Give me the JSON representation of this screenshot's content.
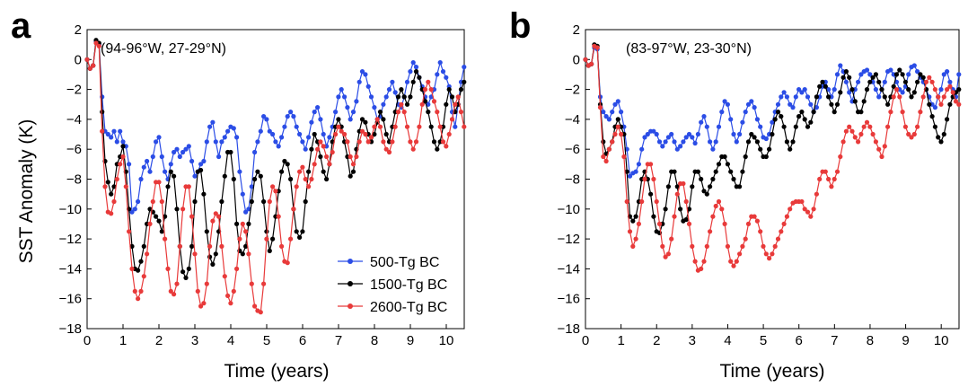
{
  "figure": {
    "ylabel": "SST  Anomaly (K)",
    "legend": {
      "position": "lower-right of panel a",
      "entries": [
        {
          "label": "500-Tg BC",
          "color": "#2b4de6"
        },
        {
          "label": "1500-Tg BC",
          "color": "#000000"
        },
        {
          "label": "2600-Tg BC",
          "color": "#e83a3a"
        }
      ]
    }
  },
  "chart_data": [
    {
      "type": "line",
      "panel": "a",
      "annotation": "(94-96°W, 27-29°N)",
      "xlabel": "Time (years)",
      "ylabel": "SST  Anomaly (K)",
      "xlim": [
        0,
        10.5
      ],
      "ylim": [
        -18,
        2
      ],
      "xticks": [
        "0",
        "1",
        "2",
        "3",
        "4",
        "5",
        "6",
        "7",
        "8",
        "9",
        "10"
      ],
      "yticks": [
        "2",
        "0",
        "−2",
        "−4",
        "−6",
        "−8",
        "−10",
        "−12",
        "−14",
        "−16",
        "−18"
      ],
      "x_step": 0.0833,
      "series": [
        {
          "name": "500-Tg BC",
          "color": "#2b4de6",
          "values": [
            0,
            -0.6,
            -0.4,
            1.2,
            1.0,
            -2.5,
            -4.8,
            -5.0,
            -5.2,
            -4.8,
            -5.5,
            -4.8,
            -5.5,
            -5.8,
            -7.0,
            -10.2,
            -10.0,
            -9.5,
            -8.0,
            -7.2,
            -6.8,
            -7.5,
            -6.5,
            -5.5,
            -5.2,
            -6.5,
            -7.5,
            -8.0,
            -7.0,
            -6.2,
            -6.0,
            -6.5,
            -6.2,
            -6.0,
            -5.8,
            -6.8,
            -7.8,
            -7.5,
            -7.0,
            -6.8,
            -5.5,
            -4.5,
            -4.2,
            -5.5,
            -6.5,
            -5.5,
            -5.2,
            -4.8,
            -4.5,
            -4.6,
            -5.2,
            -7.5,
            -9.0,
            -10.2,
            -10.0,
            -8.5,
            -6.2,
            -5.5,
            -4.8,
            -3.8,
            -4.0,
            -4.8,
            -5.0,
            -5.5,
            -5.8,
            -5.2,
            -4.5,
            -3.8,
            -3.5,
            -3.8,
            -4.5,
            -5.0,
            -5.5,
            -6.0,
            -5.2,
            -4.2,
            -3.5,
            -3.2,
            -4.0,
            -5.0,
            -5.8,
            -5.2,
            -4.5,
            -3.5,
            -2.5,
            -2.0,
            -2.5,
            -3.2,
            -4.0,
            -3.5,
            -2.8,
            -1.5,
            -0.8,
            -1.0,
            -1.8,
            -2.5,
            -3.2,
            -4.0,
            -3.8,
            -3.0,
            -2.5,
            -2.0,
            -1.5,
            -2.2,
            -3.0,
            -3.2,
            -2.5,
            -1.5,
            -0.8,
            -0.2,
            -0.5,
            -1.2,
            -1.8,
            -2.5,
            -3.0,
            -2.5,
            -2.0,
            -1.0,
            -0.2,
            -0.8,
            -1.2,
            -1.8,
            -3.5,
            -4.5,
            -3.0,
            -1.5,
            -0.5
          ]
        },
        {
          "name": "1500-Tg BC",
          "color": "#000000",
          "values": [
            0,
            -0.6,
            -0.4,
            1.3,
            1.1,
            -3.5,
            -6.8,
            -8.2,
            -9.0,
            -8.5,
            -7.0,
            -6.5,
            -5.8,
            -7.5,
            -10.0,
            -12.5,
            -14.0,
            -14.1,
            -13.5,
            -12.5,
            -11.0,
            -10.0,
            -10.2,
            -10.5,
            -10.8,
            -11.5,
            -10.5,
            -8.5,
            -7.5,
            -7.8,
            -10.0,
            -12.5,
            -14.2,
            -14.6,
            -14.0,
            -12.5,
            -9.5,
            -7.5,
            -7.4,
            -9.0,
            -11.5,
            -13.2,
            -13.7,
            -13.0,
            -11.5,
            -9.5,
            -7.8,
            -6.2,
            -6.2,
            -8.0,
            -11.0,
            -12.8,
            -13.0,
            -12.5,
            -11.0,
            -9.5,
            -8.0,
            -7.5,
            -7.8,
            -9.5,
            -11.5,
            -12.8,
            -12.0,
            -10.5,
            -8.8,
            -7.5,
            -6.8,
            -7.0,
            -8.0,
            -10.0,
            -11.5,
            -11.9,
            -11.5,
            -9.5,
            -7.5,
            -6.0,
            -5.0,
            -5.5,
            -6.5,
            -7.5,
            -8.0,
            -7.0,
            -5.5,
            -4.5,
            -4.0,
            -4.5,
            -5.5,
            -6.5,
            -7.8,
            -7.5,
            -6.0,
            -4.8,
            -4.0,
            -4.2,
            -5.0,
            -5.5,
            -5.0,
            -4.2,
            -3.5,
            -4.0,
            -5.0,
            -5.5,
            -4.5,
            -3.5,
            -2.5,
            -2.0,
            -2.5,
            -3.0,
            -2.5,
            -1.5,
            -0.8,
            -1.2,
            -2.0,
            -2.8,
            -3.5,
            -4.5,
            -5.5,
            -6.0,
            -5.5,
            -4.5,
            -3.0,
            -2.0,
            -2.5,
            -3.5,
            -3.0,
            -2.0,
            -1.5
          ]
        },
        {
          "name": "2600-Tg BC",
          "color": "#e83a3a",
          "values": [
            0,
            -0.6,
            -0.4,
            1.1,
            0.9,
            -4.8,
            -8.5,
            -10.2,
            -10.3,
            -9.5,
            -8.0,
            -7.0,
            -6.5,
            -8.5,
            -11.5,
            -14.0,
            -15.5,
            -16.0,
            -15.5,
            -14.5,
            -13.0,
            -11.0,
            -9.5,
            -8.2,
            -8.2,
            -9.5,
            -12.0,
            -14.0,
            -15.5,
            -15.7,
            -15.0,
            -12.5,
            -10.0,
            -8.5,
            -8.5,
            -10.5,
            -13.0,
            -15.5,
            -16.5,
            -16.3,
            -15.0,
            -12.5,
            -10.8,
            -10.3,
            -10.5,
            -12.5,
            -14.5,
            -15.8,
            -16.3,
            -15.5,
            -14.0,
            -12.0,
            -11.0,
            -11.5,
            -13.0,
            -15.0,
            -16.5,
            -16.8,
            -16.9,
            -15.0,
            -12.0,
            -9.5,
            -8.5,
            -8.8,
            -10.5,
            -12.5,
            -13.5,
            -13.6,
            -12.0,
            -10.0,
            -8.5,
            -7.5,
            -7.2,
            -8.0,
            -8.5,
            -8.0,
            -7.0,
            -6.0,
            -5.5,
            -5.8,
            -6.5,
            -7.0,
            -6.2,
            -5.0,
            -4.5,
            -4.8,
            -5.0,
            -5.5,
            -6.5,
            -7.0,
            -6.5,
            -5.5,
            -4.8,
            -5.0,
            -5.5,
            -5.2,
            -4.5,
            -4.0,
            -4.5,
            -5.5,
            -6.0,
            -6.2,
            -5.5,
            -4.5,
            -3.5,
            -3.0,
            -3.5,
            -4.5,
            -5.5,
            -6.0,
            -5.5,
            -4.5,
            -3.0,
            -2.0,
            -1.5,
            -2.0,
            -2.8,
            -3.5,
            -4.5,
            -5.5,
            -5.8,
            -5.0,
            -4.0,
            -3.0,
            -2.5,
            -3.5,
            -4.5
          ]
        }
      ]
    },
    {
      "type": "line",
      "panel": "b",
      "annotation": "(83-97°W, 23-30°N)",
      "xlabel": "Time (years)",
      "ylabel": "",
      "xlim": [
        0,
        10.5
      ],
      "ylim": [
        -18,
        2
      ],
      "xticks": [
        "0",
        "1",
        "2",
        "3",
        "4",
        "5",
        "6",
        "7",
        "8",
        "9",
        "10"
      ],
      "yticks": [
        "2",
        "0",
        "−2",
        "−4",
        "−6",
        "−8",
        "−10",
        "−12",
        "−14",
        "−16",
        "−18"
      ],
      "x_step": 0.0833,
      "series": [
        {
          "name": "500-Tg BC",
          "color": "#2b4de6",
          "values": [
            0,
            -0.4,
            -0.3,
            0.8,
            0.7,
            -2.5,
            -3.5,
            -3.8,
            -4.0,
            -3.5,
            -3.0,
            -2.8,
            -3.5,
            -4.5,
            -6.0,
            -7.8,
            -7.6,
            -7.5,
            -7.0,
            -6.0,
            -5.2,
            -5.0,
            -4.8,
            -4.8,
            -5.0,
            -5.5,
            -5.8,
            -5.5,
            -5.2,
            -5.0,
            -5.5,
            -6.0,
            -5.8,
            -5.5,
            -5.2,
            -5.0,
            -5.2,
            -5.6,
            -5.0,
            -4.2,
            -3.8,
            -4.5,
            -5.5,
            -6.0,
            -5.5,
            -4.5,
            -3.5,
            -2.8,
            -3.0,
            -4.0,
            -5.0,
            -5.5,
            -5.0,
            -4.2,
            -3.5,
            -3.0,
            -2.8,
            -3.2,
            -4.0,
            -4.5,
            -5.2,
            -5.3,
            -5.0,
            -4.2,
            -3.5,
            -3.0,
            -2.5,
            -2.2,
            -2.5,
            -3.0,
            -3.2,
            -2.5,
            -2.0,
            -2.2,
            -2.0,
            -2.5,
            -3.0,
            -3.5,
            -3.2,
            -2.5,
            -1.8,
            -1.5,
            -2.0,
            -2.5,
            -2.0,
            -1.0,
            -0.4,
            -0.8,
            -1.5,
            -2.2,
            -2.8,
            -2.0,
            -1.5,
            -1.0,
            -0.8,
            -0.7,
            -1.0,
            -1.5,
            -2.0,
            -2.5,
            -2.0,
            -1.5,
            -0.8,
            -0.7,
            -1.0,
            -1.5,
            -2.0,
            -2.2,
            -1.8,
            -1.0,
            -0.5,
            -0.4,
            -0.8,
            -1.2,
            -1.5,
            -2.0,
            -2.5,
            -3.0,
            -3.2,
            -2.5,
            -2.0,
            -1.0,
            -0.8,
            -1.5,
            -2.0,
            -2.5,
            -1.0
          ]
        },
        {
          "name": "1500-Tg BC",
          "color": "#000000",
          "values": [
            0,
            -0.4,
            -0.3,
            1.0,
            0.9,
            -3.0,
            -5.5,
            -6.3,
            -6.0,
            -5.5,
            -4.5,
            -4.0,
            -4.5,
            -5.0,
            -7.5,
            -10.5,
            -10.8,
            -10.5,
            -9.5,
            -8.0,
            -7.5,
            -8.0,
            -9.0,
            -10.5,
            -11.5,
            -11.6,
            -11.0,
            -10.0,
            -8.5,
            -7.5,
            -7.5,
            -8.5,
            -10.0,
            -10.8,
            -10.7,
            -10.0,
            -8.5,
            -7.5,
            -7.5,
            -8.0,
            -8.8,
            -9.0,
            -8.5,
            -8.0,
            -7.5,
            -7.0,
            -6.5,
            -6.5,
            -7.0,
            -7.5,
            -8.0,
            -8.5,
            -8.5,
            -7.5,
            -6.5,
            -5.5,
            -5.0,
            -5.2,
            -5.5,
            -6.0,
            -6.5,
            -6.5,
            -6.0,
            -5.0,
            -4.0,
            -3.5,
            -3.8,
            -4.5,
            -5.5,
            -6.0,
            -5.5,
            -4.5,
            -3.8,
            -3.5,
            -4.0,
            -4.5,
            -4.2,
            -3.5,
            -2.5,
            -1.8,
            -1.5,
            -1.8,
            -2.5,
            -3.0,
            -3.5,
            -3.0,
            -2.2,
            -1.2,
            -0.8,
            -1.2,
            -2.0,
            -2.8,
            -3.5,
            -3.5,
            -2.8,
            -2.0,
            -1.5,
            -1.2,
            -1.0,
            -1.5,
            -2.0,
            -2.5,
            -3.0,
            -2.5,
            -1.8,
            -1.0,
            -0.7,
            -1.0,
            -1.5,
            -2.0,
            -2.5,
            -2.2,
            -1.5,
            -1.0,
            -1.2,
            -2.0,
            -3.0,
            -3.8,
            -4.5,
            -5.2,
            -5.5,
            -5.0,
            -4.0,
            -3.0,
            -2.5,
            -2.2,
            -2.0
          ]
        },
        {
          "name": "2600-Tg BC",
          "color": "#e83a3a",
          "values": [
            0,
            -0.4,
            -0.3,
            0.9,
            0.8,
            -3.2,
            -6.5,
            -6.8,
            -6.0,
            -5.5,
            -5.0,
            -4.5,
            -5.0,
            -6.5,
            -9.5,
            -11.5,
            -12.5,
            -12.0,
            -11.0,
            -9.5,
            -8.0,
            -7.0,
            -7.0,
            -8.0,
            -9.5,
            -11.0,
            -12.5,
            -13.2,
            -13.0,
            -12.0,
            -10.5,
            -9.0,
            -8.3,
            -8.3,
            -9.5,
            -11.0,
            -12.5,
            -13.5,
            -14.1,
            -14.0,
            -13.5,
            -12.5,
            -11.5,
            -10.5,
            -9.8,
            -9.5,
            -10.0,
            -11.0,
            -12.5,
            -13.5,
            -13.8,
            -13.5,
            -13.0,
            -12.5,
            -12.0,
            -11.0,
            -10.5,
            -10.5,
            -10.8,
            -11.5,
            -12.5,
            -13.0,
            -13.3,
            -13.0,
            -12.5,
            -12.0,
            -11.5,
            -11.0,
            -10.5,
            -10.0,
            -9.6,
            -9.5,
            -9.5,
            -9.5,
            -10.0,
            -10.2,
            -10.5,
            -10.0,
            -9.0,
            -8.0,
            -7.5,
            -7.5,
            -8.0,
            -8.5,
            -8.0,
            -7.5,
            -6.5,
            -5.5,
            -4.8,
            -4.5,
            -4.8,
            -5.2,
            -5.5,
            -5.0,
            -4.5,
            -4.2,
            -4.5,
            -5.0,
            -5.5,
            -6.0,
            -6.5,
            -5.8,
            -4.5,
            -3.5,
            -2.5,
            -2.0,
            -2.5,
            -3.5,
            -4.5,
            -5.0,
            -5.2,
            -5.0,
            -4.5,
            -3.5,
            -2.5,
            -1.5,
            -1.2,
            -1.5,
            -2.0,
            -2.5,
            -3.0,
            -2.5,
            -2.0,
            -1.8,
            -2.2,
            -2.8,
            -3.0
          ]
        }
      ]
    }
  ]
}
